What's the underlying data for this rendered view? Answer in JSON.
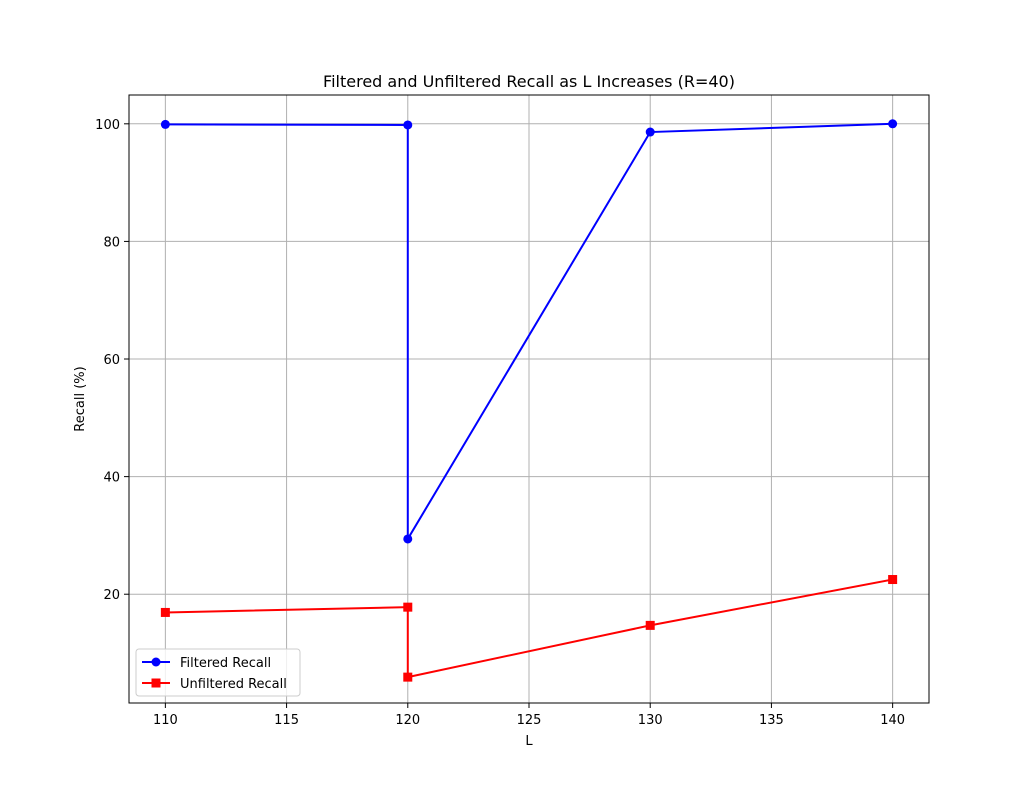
{
  "chart_data": {
    "type": "line",
    "title": "Filtered and Unfiltered Recall as L Increases (R=40)",
    "xlabel": "L",
    "ylabel": "Recall (%)",
    "xlim": [
      108.5,
      141.5
    ],
    "ylim": [
      1.5,
      104.9
    ],
    "xticks": [
      110,
      115,
      120,
      125,
      130,
      135,
      140
    ],
    "yticks": [
      20,
      40,
      60,
      80,
      100
    ],
    "grid": true,
    "legend": "lower-left",
    "series": [
      {
        "name": "Filtered Recall",
        "color": "#0000ff",
        "marker": "circle",
        "x": [
          110,
          120,
          120,
          130,
          140
        ],
        "y": [
          99.9,
          99.8,
          29.4,
          98.6,
          100.0
        ]
      },
      {
        "name": "Unfiltered Recall",
        "color": "#ff0000",
        "marker": "square",
        "x": [
          110,
          120,
          120,
          130,
          140
        ],
        "y": [
          16.9,
          17.8,
          5.9,
          14.7,
          22.5
        ]
      }
    ]
  }
}
